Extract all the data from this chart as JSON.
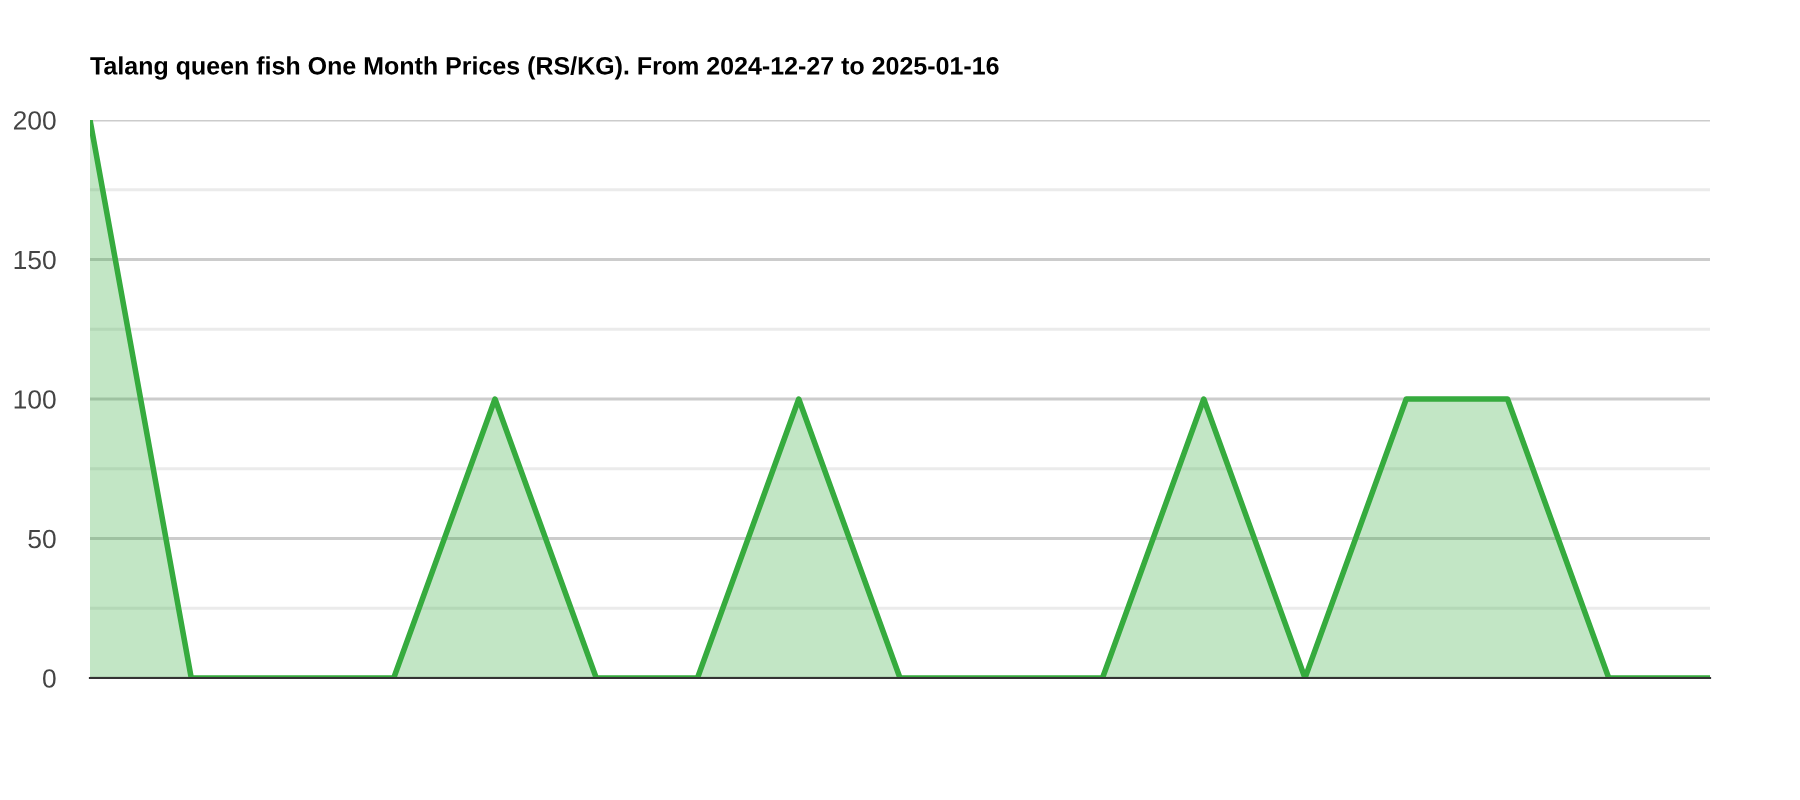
{
  "chart_data": {
    "type": "area",
    "title": "Talang queen fish One Month Prices (RS/KG). From 2024-12-27 to 2025-01-16",
    "categories": [
      null,
      null,
      null,
      null,
      null,
      null,
      null,
      null,
      null,
      null,
      null,
      null,
      null,
      null,
      null,
      null,
      null
    ],
    "series": [
      {
        "color": "#36ab3e",
        "values": [
          200,
          0,
          0,
          0,
          100,
          0,
          0,
          100,
          0,
          0,
          0,
          100,
          0,
          100,
          100,
          0,
          0
        ]
      }
    ],
    "ylim": [
      0,
      200
    ],
    "yticks": [
      0,
      {
        "value": 25,
        "label": null
      },
      50,
      {
        "value": 75,
        "label": null
      },
      100,
      {
        "value": 125,
        "label": null
      },
      150,
      {
        "value": 175,
        "label": null
      },
      200
    ],
    "grid": "y"
  }
}
